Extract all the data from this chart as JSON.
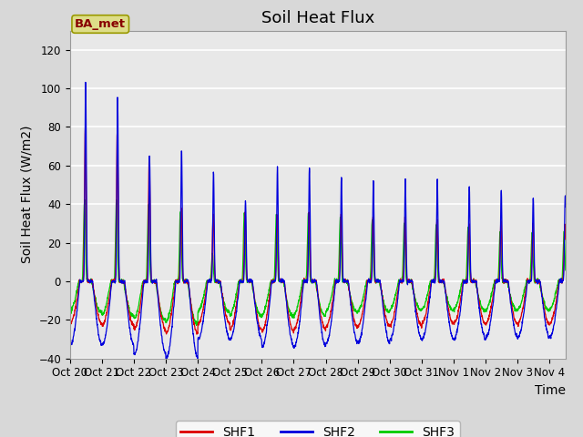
{
  "title": "Soil Heat Flux",
  "ylabel": "Soil Heat Flux (W/m2)",
  "xlabel": "Time",
  "ylim": [
    -40,
    130
  ],
  "yticks": [
    -40,
    -20,
    0,
    20,
    40,
    60,
    80,
    100,
    120
  ],
  "xtick_labels": [
    "Oct 20",
    "Oct 21",
    "Oct 22",
    "Oct 23",
    "Oct 24",
    "Oct 25",
    "Oct 26",
    "Oct 27",
    "Oct 28",
    "Oct 29",
    "Oct 30",
    "Oct 31",
    "Nov 1",
    "Nov 2",
    "Nov 3",
    "Nov 4"
  ],
  "legend_labels": [
    "SHF1",
    "SHF2",
    "SHF3"
  ],
  "legend_colors": [
    "#dd0000",
    "#0000dd",
    "#00cc00"
  ],
  "station_label": "BA_met",
  "station_box_facecolor": "#dddd88",
  "station_text_color": "#880000",
  "bg_color": "#d8d8d8",
  "plot_bg_color": "#e8e8e8",
  "grid_color": "#ffffff",
  "title_fontsize": 13,
  "label_fontsize": 10,
  "tick_fontsize": 8.5,
  "shf1_peaks": [
    80,
    78,
    65,
    38,
    35,
    36,
    35,
    36,
    35,
    34,
    33,
    32,
    30,
    31,
    30,
    30
  ],
  "shf2_peaks": [
    104,
    96,
    65,
    68,
    57,
    42,
    59,
    59,
    55,
    52,
    53,
    53,
    49,
    47,
    44,
    44
  ],
  "shf3_peaks": [
    42,
    43,
    40,
    36,
    14,
    36,
    35,
    35,
    32,
    32,
    30,
    29,
    28,
    26,
    25,
    25
  ],
  "shf1_troughs": [
    -22,
    -23,
    -25,
    -27,
    -22,
    -25,
    -26,
    -25,
    -24,
    -23,
    -23,
    -22,
    -22,
    -22,
    -22,
    -22
  ],
  "shf2_troughs": [
    -33,
    -33,
    -38,
    -40,
    -30,
    -30,
    -34,
    -34,
    -32,
    -32,
    -30,
    -30,
    -30,
    -29,
    -29,
    -29
  ],
  "shf3_troughs": [
    -16,
    -18,
    -20,
    -22,
    -16,
    -18,
    -18,
    -18,
    -16,
    -16,
    -15,
    -15,
    -15,
    -15,
    -15,
    -15
  ],
  "shf1_phase": 0.0,
  "shf2_phase": -0.01,
  "shf3_phase": 0.025
}
